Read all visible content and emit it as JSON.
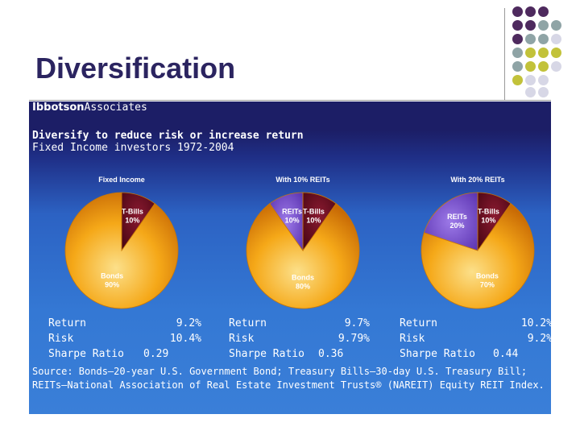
{
  "slide": {
    "title": "Diversification"
  },
  "header": {
    "brand_bold": "Ibbotson",
    "brand_rest": "Associates",
    "headline": "Diversify to reduce risk or increase return",
    "subline": "Fixed Income investors 1972-2004"
  },
  "colors": {
    "bonds": "#f4a310",
    "tbills": "#6b0a1e",
    "reits": "#7b4fd0",
    "background": "#3478d4",
    "title": "#2b2460"
  },
  "chart_data": [
    {
      "type": "pie",
      "title": "Fixed Income",
      "slices": [
        {
          "name": "T-Bills",
          "value": 10,
          "label": "10%"
        },
        {
          "name": "Bonds",
          "value": 90,
          "label": "90%"
        }
      ],
      "stats": {
        "Return": "9.2%",
        "Risk": "10.4%",
        "Sharpe Ratio": "0.29"
      }
    },
    {
      "type": "pie",
      "title": "With 10% REITs",
      "slices": [
        {
          "name": "REITs",
          "value": 10,
          "label": "10%"
        },
        {
          "name": "T-Bills",
          "value": 10,
          "label": "10%"
        },
        {
          "name": "Bonds",
          "value": 80,
          "label": "80%"
        }
      ],
      "stats": {
        "Return": "9.7%",
        "Risk": "9.79%",
        "Sharpe Ratio": "0.36"
      }
    },
    {
      "type": "pie",
      "title": "With 20% REITs",
      "slices": [
        {
          "name": "REITs",
          "value": 20,
          "label": "20%"
        },
        {
          "name": "T-Bills",
          "value": 10,
          "label": "10%"
        },
        {
          "name": "Bonds",
          "value": 70,
          "label": "70%"
        }
      ],
      "stats": {
        "Return": "10.2%",
        "Risk": "9.2%",
        "Sharpe Ratio": "0.44"
      }
    }
  ],
  "stats_labels": {
    "return": "Return",
    "risk": "Risk",
    "sharpe": "Sharpe Ratio"
  },
  "source": "Source: Bonds—20-year U.S. Government Bond; Treasury Bills—30-day U.S. Treasury Bill; REITs—National Association of Real Estate Investment Trusts® (NAREIT) Equity REIT Index."
}
